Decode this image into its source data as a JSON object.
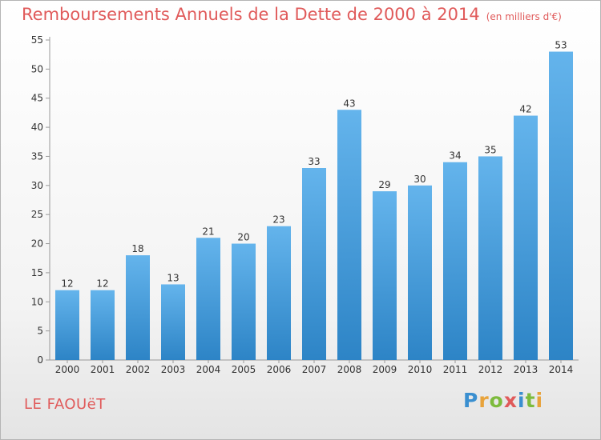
{
  "header": {
    "title": "Remboursements Annuels de la Dette de 2000 à 2014",
    "unit": "(en milliers d'€)"
  },
  "footer": {
    "town": "LE FAOUëT",
    "logo_letters": [
      {
        "ch": "P",
        "color": "#3a8fd0"
      },
      {
        "ch": "r",
        "color": "#e8a33b"
      },
      {
        "ch": "o",
        "color": "#7dbb3d"
      },
      {
        "ch": "x",
        "color": "#e05a5a"
      },
      {
        "ch": "i",
        "color": "#3a8fd0"
      },
      {
        "ch": "t",
        "color": "#7dbb3d"
      },
      {
        "ch": "i",
        "color": "#e8a33b"
      }
    ]
  },
  "colors": {
    "title": "#e05a5a",
    "bar_top": "#64b4ec",
    "bar_bottom": "#2d84c6",
    "text": "#333333"
  },
  "chart_data": {
    "type": "bar",
    "categories": [
      "2000",
      "2001",
      "2002",
      "2003",
      "2004",
      "2005",
      "2006",
      "2007",
      "2008",
      "2009",
      "2010",
      "2011",
      "2012",
      "2013",
      "2014"
    ],
    "values": [
      12,
      12,
      18,
      13,
      21,
      20,
      23,
      33,
      43,
      29,
      30,
      34,
      35,
      42,
      53
    ],
    "ylim": [
      0,
      55
    ],
    "yticks": [
      0,
      5,
      10,
      15,
      20,
      25,
      30,
      35,
      40,
      45,
      50,
      55
    ],
    "grid": false
  }
}
